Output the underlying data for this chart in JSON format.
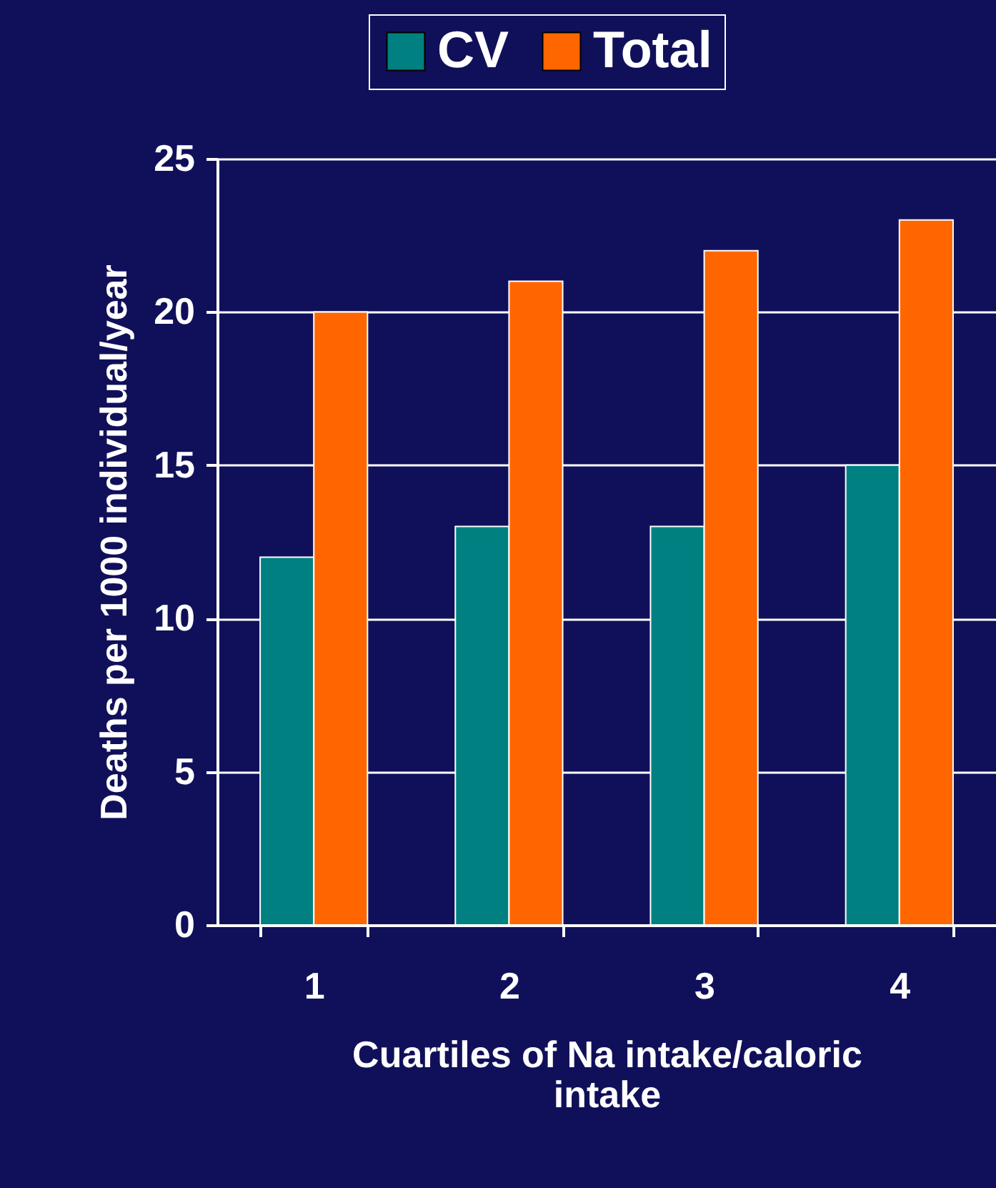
{
  "chart_data": {
    "type": "bar",
    "xlabel": "Cuartiles of Na intake/caloric intake",
    "ylabel": "Deaths per 1000 individual/year",
    "categories": [
      "1",
      "2",
      "3",
      "4"
    ],
    "series": [
      {
        "name": "CV",
        "color": "#008080",
        "values": [
          12,
          13,
          13,
          15
        ]
      },
      {
        "name": "Total",
        "color": "#ff6600",
        "values": [
          20,
          21,
          22,
          23
        ]
      }
    ],
    "ylim": [
      0,
      25
    ],
    "yticks": [
      0,
      5,
      10,
      15,
      20,
      25
    ],
    "grid": "y",
    "legend": "top"
  }
}
